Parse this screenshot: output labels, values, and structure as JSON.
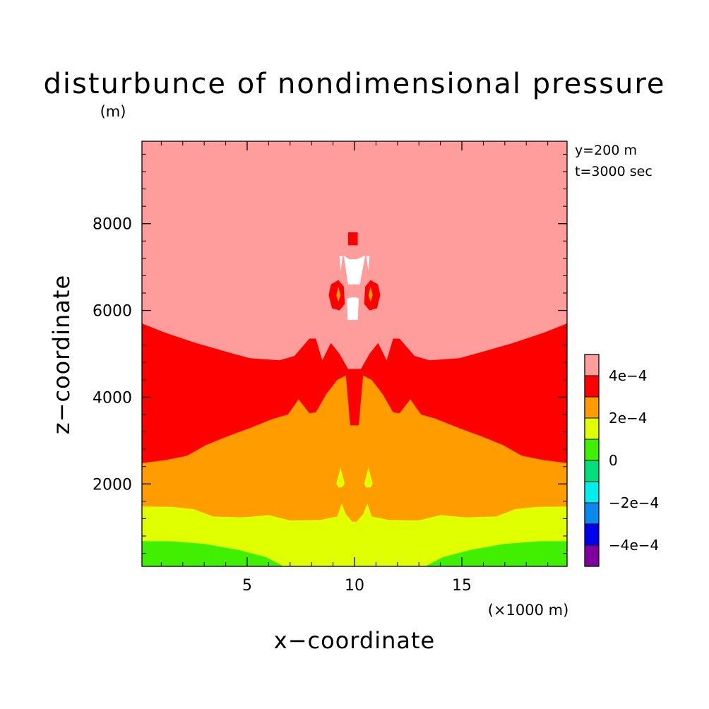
{
  "chart_data": {
    "type": "heatmap",
    "subtype": "filled-contour",
    "title": "disturbunce of nondimensional pressure",
    "y_unit_label": "(m)",
    "annotations": [
      "y=200 m",
      "t=3000 sec"
    ],
    "xlabel": "x−coordinate",
    "ylabel": "z−coordinate",
    "x_unit_label": "(×1000 m)",
    "x_ticks": [
      {
        "value": 5,
        "label": "5"
      },
      {
        "value": 10,
        "label": "10"
      },
      {
        "value": 15,
        "label": "15"
      }
    ],
    "y_ticks": [
      {
        "value": 2000,
        "label": "2000"
      },
      {
        "value": 4000,
        "label": "4000"
      },
      {
        "value": 6000,
        "label": "6000"
      },
      {
        "value": 8000,
        "label": "8000"
      }
    ],
    "xlim": [
      0.1,
      19.9
    ],
    "ylim": [
      100,
      9900
    ],
    "x_minor_step": 1,
    "y_minor_step": 400,
    "colorbar": {
      "levels": [
        -0.0005,
        -0.0004,
        -0.0003,
        -0.0002,
        -0.0001,
        0,
        0.0001,
        0.0002,
        0.0003,
        0.0004,
        0.0005
      ],
      "colors": [
        "#7f00a0",
        "#0000ee",
        "#0a88ee",
        "#00eeee",
        "#00e07a",
        "#40f000",
        "#e0ff00",
        "#ff9c00",
        "#ff0000",
        "#ff9c9c"
      ],
      "tick_labels": [
        {
          "value": 0.0004,
          "label": "4e−4"
        },
        {
          "value": 0.0002,
          "label": "2e−4"
        },
        {
          "value": 0,
          "label": "0"
        },
        {
          "value": -0.0002,
          "label": "−2e−4"
        },
        {
          "value": -0.0004,
          "label": "−4e−4"
        }
      ]
    },
    "field_regions": [
      {
        "level_value": 0.00045,
        "color": "#ff9c9c",
        "points": [
          [
            0.1,
            9900
          ],
          [
            19.9,
            9900
          ],
          [
            19.9,
            100
          ],
          [
            0.1,
            100
          ]
        ]
      },
      {
        "level_value": 0.00035,
        "color": "#ff0000",
        "points": [
          [
            0.1,
            5700
          ],
          [
            1.1,
            5500
          ],
          [
            2.6,
            5250
          ],
          [
            4.0,
            5050
          ],
          [
            5.1,
            4900
          ],
          [
            6.5,
            4850
          ],
          [
            7.2,
            4950
          ],
          [
            7.9,
            5350
          ],
          [
            8.2,
            5350
          ],
          [
            8.5,
            4850
          ],
          [
            8.9,
            5250
          ],
          [
            9.3,
            5000
          ],
          [
            9.7,
            4650
          ],
          [
            9.9,
            4650
          ],
          [
            10.1,
            4650
          ],
          [
            10.3,
            4650
          ],
          [
            10.7,
            5000
          ],
          [
            11.1,
            5250
          ],
          [
            11.5,
            4850
          ],
          [
            11.8,
            5350
          ],
          [
            12.1,
            5350
          ],
          [
            12.8,
            4950
          ],
          [
            13.5,
            4850
          ],
          [
            14.9,
            4900
          ],
          [
            16.0,
            5050
          ],
          [
            17.4,
            5250
          ],
          [
            18.9,
            5500
          ],
          [
            19.9,
            5700
          ],
          [
            19.9,
            100
          ],
          [
            0.1,
            100
          ]
        ]
      },
      {
        "level_value": 0.00025,
        "color": "#ff9c00",
        "points": [
          [
            0.1,
            2480
          ],
          [
            1.2,
            2550
          ],
          [
            2.2,
            2650
          ],
          [
            3.1,
            2900
          ],
          [
            4.1,
            3100
          ],
          [
            5.2,
            3300
          ],
          [
            6.2,
            3500
          ],
          [
            6.9,
            3600
          ],
          [
            7.4,
            3950
          ],
          [
            7.9,
            3630
          ],
          [
            8.2,
            3650
          ],
          [
            8.7,
            4080
          ],
          [
            9.2,
            4400
          ],
          [
            9.6,
            4500
          ],
          [
            9.8,
            3350
          ],
          [
            10.2,
            3350
          ],
          [
            10.4,
            4500
          ],
          [
            10.8,
            4400
          ],
          [
            11.3,
            4080
          ],
          [
            11.8,
            3650
          ],
          [
            12.1,
            3630
          ],
          [
            12.6,
            3950
          ],
          [
            13.1,
            3600
          ],
          [
            13.8,
            3500
          ],
          [
            14.8,
            3300
          ],
          [
            15.9,
            3100
          ],
          [
            16.9,
            2900
          ],
          [
            17.8,
            2650
          ],
          [
            18.8,
            2550
          ],
          [
            19.9,
            2480
          ],
          [
            19.9,
            100
          ],
          [
            0.1,
            100
          ]
        ]
      },
      {
        "level_value": 0.00015,
        "color": "#e0ff00",
        "points": [
          [
            0.1,
            1480
          ],
          [
            1.5,
            1470
          ],
          [
            2.5,
            1420
          ],
          [
            3.4,
            1250
          ],
          [
            4.8,
            1230
          ],
          [
            6.0,
            1280
          ],
          [
            7.0,
            1160
          ],
          [
            8.4,
            1170
          ],
          [
            9.2,
            1250
          ],
          [
            9.4,
            1550
          ],
          [
            9.6,
            1300
          ],
          [
            9.9,
            1130
          ],
          [
            10.1,
            1130
          ],
          [
            10.4,
            1300
          ],
          [
            10.6,
            1550
          ],
          [
            10.8,
            1250
          ],
          [
            11.6,
            1170
          ],
          [
            13.0,
            1160
          ],
          [
            14.0,
            1280
          ],
          [
            15.2,
            1230
          ],
          [
            16.6,
            1250
          ],
          [
            17.5,
            1420
          ],
          [
            18.5,
            1470
          ],
          [
            19.9,
            1480
          ],
          [
            19.9,
            100
          ],
          [
            0.1,
            100
          ]
        ]
      },
      {
        "level_value": 5e-05,
        "color": "#40f000",
        "points": [
          [
            0.1,
            680
          ],
          [
            1.4,
            680
          ],
          [
            3.0,
            620
          ],
          [
            4.6,
            480
          ],
          [
            5.9,
            310
          ],
          [
            6.7,
            100
          ],
          [
            0.1,
            100
          ]
        ]
      },
      {
        "level_value": 5e-05,
        "color": "#40f000",
        "points": [
          [
            13.3,
            100
          ],
          [
            14.1,
            310
          ],
          [
            15.4,
            480
          ],
          [
            17.0,
            620
          ],
          [
            18.6,
            680
          ],
          [
            19.9,
            680
          ],
          [
            19.9,
            100
          ]
        ]
      },
      {
        "level_value": 0.00015,
        "color": "#e0ff00",
        "points": [
          [
            9.15,
            2000
          ],
          [
            9.35,
            2380
          ],
          [
            9.55,
            2000
          ],
          [
            9.4,
            1920
          ],
          [
            9.25,
            1920
          ]
        ]
      },
      {
        "level_value": 0.00015,
        "color": "#e0ff00",
        "points": [
          [
            10.45,
            2000
          ],
          [
            10.65,
            2380
          ],
          [
            10.85,
            2000
          ],
          [
            10.75,
            1920
          ],
          [
            10.55,
            1920
          ]
        ]
      },
      {
        "level_value": 0.00035,
        "color": "#ff0000",
        "points": [
          [
            9.7,
            7800
          ],
          [
            10.15,
            7800
          ],
          [
            10.15,
            7500
          ],
          [
            9.7,
            7500
          ]
        ]
      },
      {
        "level_value": 0.00055,
        "color": "#ffffff",
        "points": [
          [
            9.5,
            7270
          ],
          [
            9.75,
            7180
          ],
          [
            10.1,
            7180
          ],
          [
            10.5,
            7270
          ],
          [
            10.25,
            6600
          ],
          [
            9.7,
            6600
          ]
        ]
      },
      {
        "level_value": 0.00055,
        "color": "#ffffff",
        "points": [
          [
            9.65,
            6270
          ],
          [
            9.85,
            6300
          ],
          [
            10.1,
            6300
          ],
          [
            10.2,
            6270
          ],
          [
            10.15,
            5780
          ],
          [
            9.68,
            5780
          ]
        ]
      },
      {
        "level_value": 0.00055,
        "color": "#ffffff",
        "points": [
          [
            9.3,
            7250
          ],
          [
            9.35,
            6900
          ],
          [
            9.45,
            7250
          ]
        ]
      },
      {
        "level_value": 0.00055,
        "color": "#ffffff",
        "points": [
          [
            10.55,
            7250
          ],
          [
            10.65,
            6900
          ],
          [
            10.7,
            7250
          ]
        ]
      },
      {
        "level_value": 0.00035,
        "color": "#ff0000",
        "points": [
          [
            9.25,
            6700
          ],
          [
            8.9,
            6600
          ],
          [
            8.8,
            6350
          ],
          [
            8.95,
            6050
          ],
          [
            9.3,
            6000
          ],
          [
            9.55,
            6150
          ],
          [
            9.5,
            6550
          ]
        ]
      },
      {
        "level_value": 0.00035,
        "color": "#ff0000",
        "points": [
          [
            10.75,
            6700
          ],
          [
            11.1,
            6600
          ],
          [
            11.2,
            6350
          ],
          [
            11.05,
            6050
          ],
          [
            10.7,
            6000
          ],
          [
            10.45,
            6150
          ],
          [
            10.5,
            6550
          ]
        ]
      },
      {
        "level_value": 0.00025,
        "color": "#ff9c00",
        "points": [
          [
            9.25,
            6550
          ],
          [
            9.15,
            6350
          ],
          [
            9.25,
            6200
          ],
          [
            9.35,
            6350
          ]
        ]
      },
      {
        "level_value": 0.00025,
        "color": "#ff9c00",
        "points": [
          [
            10.75,
            6550
          ],
          [
            10.85,
            6350
          ],
          [
            10.75,
            6200
          ],
          [
            10.65,
            6350
          ]
        ]
      }
    ]
  }
}
